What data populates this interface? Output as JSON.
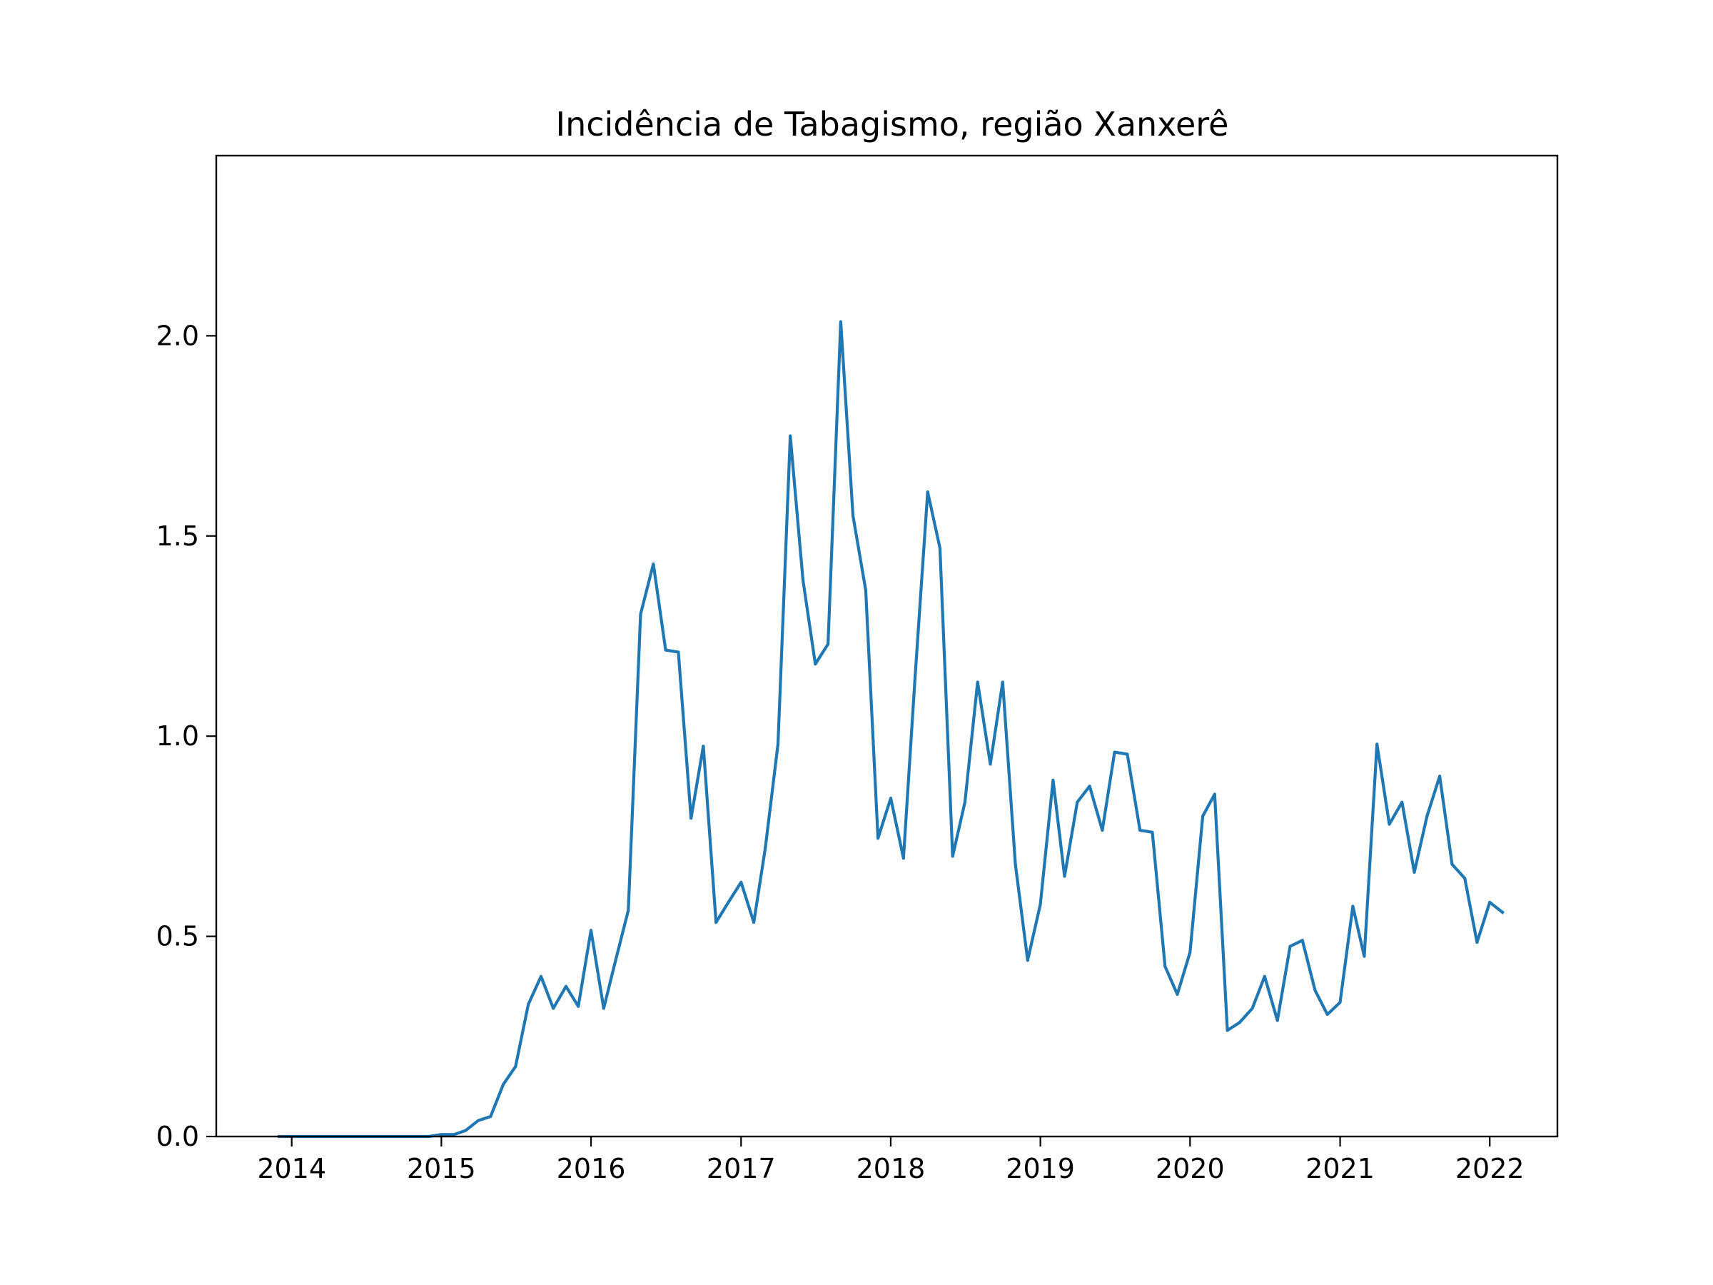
{
  "chart_data": {
    "type": "line",
    "title": "Incidência de Tabagismo, região Xanxerê",
    "xlabel": "",
    "ylabel": "",
    "xlim": [
      "2013-07-01",
      "2022-06-15"
    ],
    "ylim": [
      0,
      2.45
    ],
    "x_ticks": [
      "2014",
      "2015",
      "2016",
      "2017",
      "2018",
      "2019",
      "2020",
      "2021",
      "2022"
    ],
    "y_ticks": [
      "0.0",
      "0.5",
      "1.0",
      "1.5",
      "2.0"
    ],
    "grid": false,
    "legend": "none",
    "colors": {
      "line": "#1f77b4",
      "axes": "#000000"
    },
    "series": [
      {
        "points": [
          [
            "2013-12-01",
            0.0
          ],
          [
            "2014-01-01",
            0.0
          ],
          [
            "2014-02-01",
            0.0
          ],
          [
            "2014-06-01",
            0.0
          ],
          [
            "2014-07-01",
            0.0
          ],
          [
            "2014-08-01",
            0.0
          ],
          [
            "2014-11-01",
            0.0
          ],
          [
            "2014-12-01",
            0.0
          ],
          [
            "2015-01-01",
            0.005
          ],
          [
            "2015-02-01",
            0.005
          ],
          [
            "2015-03-01",
            0.015
          ],
          [
            "2015-04-01",
            0.04
          ],
          [
            "2015-05-01",
            0.05
          ],
          [
            "2015-06-01",
            0.13
          ],
          [
            "2015-07-01",
            0.175
          ],
          [
            "2015-08-01",
            0.33
          ],
          [
            "2015-09-01",
            0.4
          ],
          [
            "2015-10-01",
            0.32
          ],
          [
            "2015-11-01",
            0.375
          ],
          [
            "2015-12-01",
            0.325
          ],
          [
            "2016-01-01",
            0.515
          ],
          [
            "2016-02-01",
            0.32
          ],
          [
            "2016-03-01",
            0.44
          ],
          [
            "2016-04-01",
            0.565
          ],
          [
            "2016-05-01",
            1.305
          ],
          [
            "2016-06-01",
            1.43
          ],
          [
            "2016-07-01",
            1.215
          ],
          [
            "2016-08-01",
            1.21
          ],
          [
            "2016-09-01",
            0.795
          ],
          [
            "2016-10-01",
            0.975
          ],
          [
            "2016-11-01",
            0.535
          ],
          [
            "2016-12-01",
            0.585
          ],
          [
            "2017-01-01",
            0.635
          ],
          [
            "2017-02-01",
            0.535
          ],
          [
            "2017-03-01",
            0.72
          ],
          [
            "2017-04-01",
            0.98
          ],
          [
            "2017-05-01",
            1.75
          ],
          [
            "2017-06-01",
            1.39
          ],
          [
            "2017-07-01",
            1.18
          ],
          [
            "2017-08-01",
            1.23
          ],
          [
            "2017-09-01",
            2.035
          ],
          [
            "2017-10-01",
            1.55
          ],
          [
            "2017-11-01",
            1.365
          ],
          [
            "2017-12-01",
            0.745
          ],
          [
            "2018-01-01",
            0.845
          ],
          [
            "2018-02-01",
            0.695
          ],
          [
            "2018-03-01",
            1.14
          ],
          [
            "2018-04-01",
            1.61
          ],
          [
            "2018-05-01",
            1.47
          ],
          [
            "2018-06-01",
            0.7
          ],
          [
            "2018-07-01",
            0.835
          ],
          [
            "2018-08-01",
            1.135
          ],
          [
            "2018-09-01",
            0.93
          ],
          [
            "2018-10-01",
            1.135
          ],
          [
            "2018-11-01",
            0.68
          ],
          [
            "2018-12-01",
            0.44
          ],
          [
            "2019-01-01",
            0.58
          ],
          [
            "2019-02-01",
            0.89
          ],
          [
            "2019-03-01",
            0.65
          ],
          [
            "2019-04-01",
            0.835
          ],
          [
            "2019-05-01",
            0.875
          ],
          [
            "2019-06-01",
            0.765
          ],
          [
            "2019-07-01",
            0.96
          ],
          [
            "2019-08-01",
            0.955
          ],
          [
            "2019-09-01",
            0.765
          ],
          [
            "2019-10-01",
            0.76
          ],
          [
            "2019-11-01",
            0.425
          ],
          [
            "2019-12-01",
            0.355
          ],
          [
            "2020-01-01",
            0.46
          ],
          [
            "2020-02-01",
            0.8
          ],
          [
            "2020-03-01",
            0.855
          ],
          [
            "2020-04-01",
            0.265
          ],
          [
            "2020-05-01",
            0.285
          ],
          [
            "2020-06-01",
            0.32
          ],
          [
            "2020-07-01",
            0.4
          ],
          [
            "2020-08-01",
            0.29
          ],
          [
            "2020-09-01",
            0.475
          ],
          [
            "2020-10-01",
            0.49
          ],
          [
            "2020-11-01",
            0.365
          ],
          [
            "2020-12-01",
            0.305
          ],
          [
            "2021-01-01",
            0.335
          ],
          [
            "2021-02-01",
            0.575
          ],
          [
            "2021-03-01",
            0.45
          ],
          [
            "2021-04-01",
            0.98
          ],
          [
            "2021-05-01",
            0.78
          ],
          [
            "2021-06-01",
            0.835
          ],
          [
            "2021-07-01",
            0.66
          ],
          [
            "2021-08-01",
            0.8
          ],
          [
            "2021-09-01",
            0.9
          ],
          [
            "2021-10-01",
            0.68
          ],
          [
            "2021-11-01",
            0.645
          ],
          [
            "2021-12-01",
            0.485
          ],
          [
            "2022-01-01",
            0.585
          ],
          [
            "2022-02-01",
            0.56
          ]
        ]
      }
    ]
  }
}
